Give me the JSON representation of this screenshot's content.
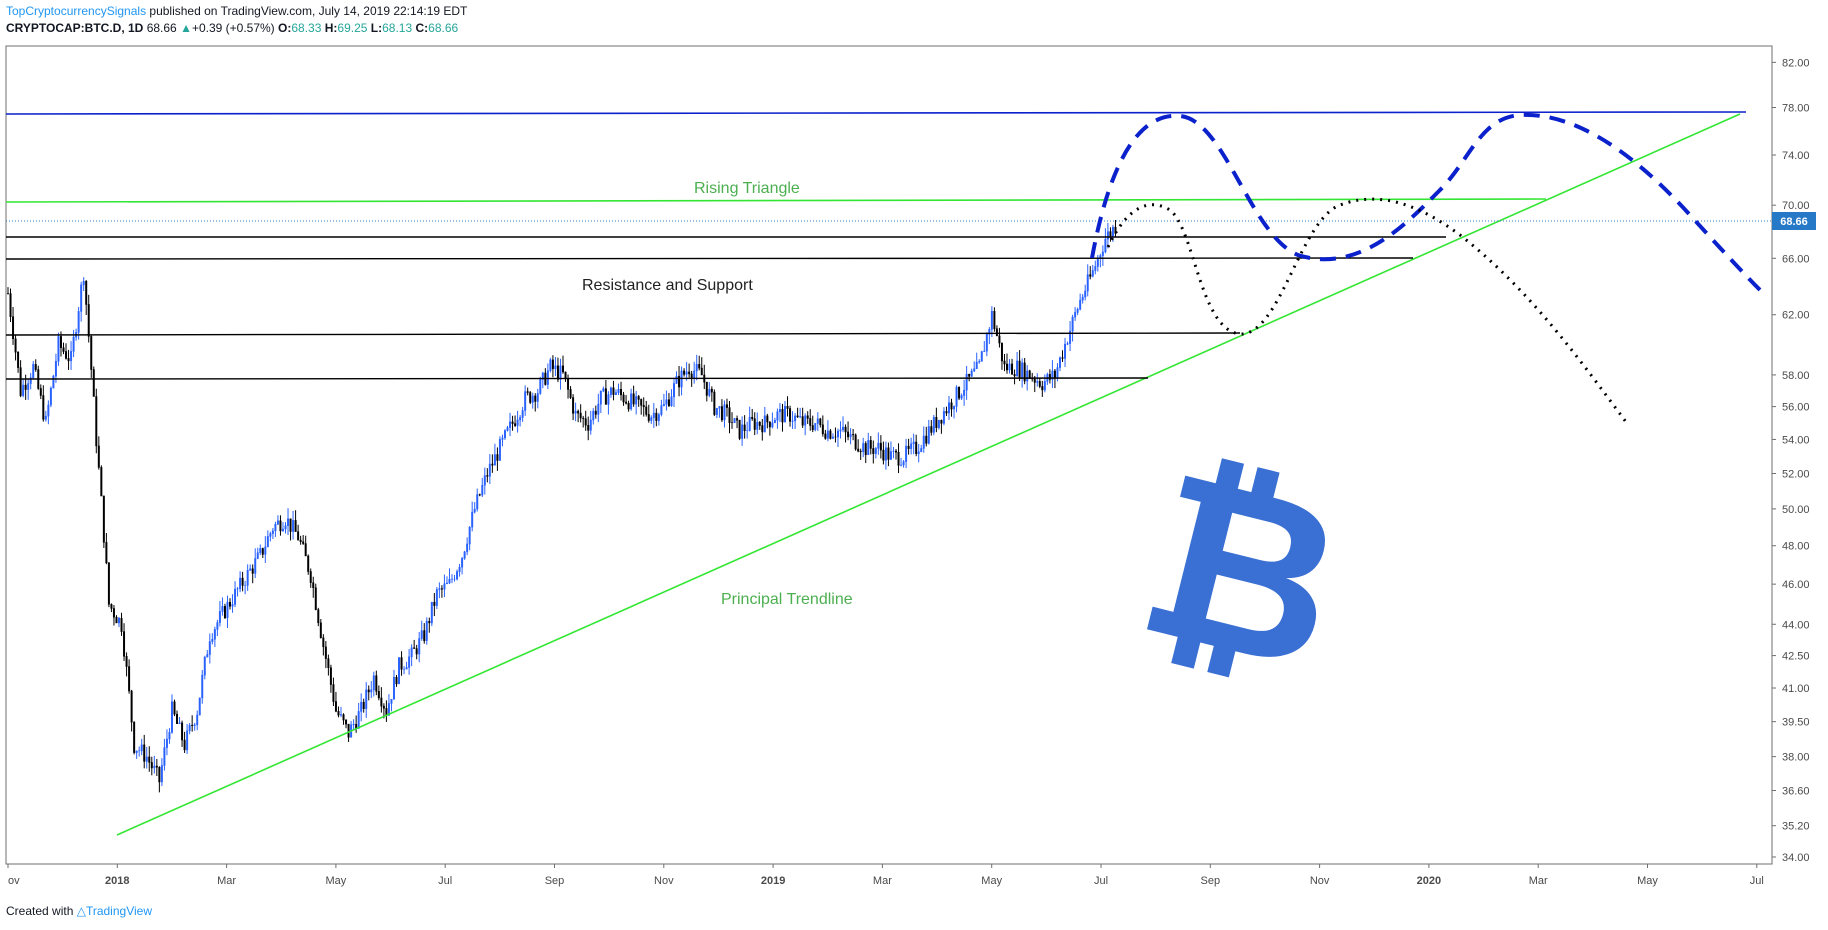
{
  "header": {
    "author": "TopCryptocurrencySignals",
    "published": " published on TradingView.com, July 14, 2019 22:14:19 EDT",
    "symbol": "CRYPTOCAP:BTC.D, 1D",
    "last": "68.66",
    "change_icon": "triangle-up-icon",
    "change": "+0.39 (+0.57%)",
    "o_label": "O:",
    "o": "68.33",
    "h_label": "H:",
    "h": "69.25",
    "l_label": "L:",
    "l": "68.13",
    "c_label": "C:",
    "c": "68.66"
  },
  "footer": {
    "created_with": "Created with",
    "brand": "TradingView",
    "brand_icon": "tradingview-logo-icon"
  },
  "colors": {
    "up_candle": "#2962ff",
    "down_candle": "#000000",
    "green_line": "#33e633",
    "blue_line": "#0a21cc",
    "price_badge": "#2679c7",
    "bitcoin": "#3a6fd4"
  },
  "chart_data": {
    "type": "line",
    "title": "CRYPTOCAP:BTC.D, 1D",
    "series": [
      {
        "x": [
          "2017-11-05",
          "2017-11-12",
          "2017-11-19",
          "2017-11-26",
          "2017-12-03",
          "2017-12-10",
          "2017-12-17",
          "2017-12-24",
          "2017-12-31",
          "2018-01-07",
          "2018-01-14",
          "2018-01-21",
          "2018-01-28",
          "2018-02-04",
          "2018-02-11",
          "2018-02-18",
          "2018-02-25",
          "2018-03-04",
          "2018-03-11",
          "2018-03-18",
          "2018-03-25",
          "2018-04-01",
          "2018-04-08",
          "2018-04-15",
          "2018-04-22",
          "2018-04-29",
          "2018-05-06",
          "2018-05-13",
          "2018-05-20",
          "2018-05-27",
          "2018-06-03",
          "2018-06-10",
          "2018-06-17",
          "2018-06-24",
          "2018-07-01",
          "2018-07-08",
          "2018-07-15",
          "2018-07-22",
          "2018-07-29",
          "2018-08-05",
          "2018-08-12",
          "2018-08-19",
          "2018-08-26",
          "2018-09-02",
          "2018-09-09",
          "2018-09-16",
          "2018-09-23",
          "2018-09-30",
          "2018-10-07",
          "2018-10-14",
          "2018-10-21",
          "2018-10-28",
          "2018-11-04",
          "2018-11-11",
          "2018-11-18",
          "2018-11-25",
          "2018-12-02",
          "2018-12-09",
          "2018-12-16",
          "2018-12-23",
          "2018-12-30",
          "2019-01-06",
          "2019-01-13",
          "2019-01-20",
          "2019-01-27",
          "2019-02-03",
          "2019-02-10",
          "2019-02-17",
          "2019-02-24",
          "2019-03-03",
          "2019-03-10",
          "2019-03-17",
          "2019-03-24",
          "2019-03-31",
          "2019-04-07",
          "2019-04-14",
          "2019-04-21",
          "2019-04-28",
          "2019-05-05",
          "2019-05-12",
          "2019-05-19",
          "2019-05-26",
          "2019-06-02",
          "2019-06-09",
          "2019-06-16",
          "2019-06-23",
          "2019-06-30",
          "2019-07-07",
          "2019-07-14"
        ],
        "values": [
          63.5,
          57.0,
          58.5,
          55.0,
          60.0,
          59.0,
          65.0,
          54.0,
          45.0,
          44.0,
          38.5,
          38.0,
          37.0,
          40.0,
          38.5,
          40.0,
          43.5,
          44.5,
          45.5,
          46.5,
          47.5,
          49.0,
          49.5,
          48.5,
          46.5,
          43.0,
          40.0,
          39.0,
          40.0,
          41.5,
          40.0,
          42.0,
          42.5,
          43.5,
          45.5,
          46.0,
          47.5,
          50.0,
          52.0,
          53.5,
          55.0,
          56.5,
          57.0,
          58.5,
          58.0,
          55.5,
          55.0,
          56.5,
          57.0,
          56.5,
          56.0,
          55.5,
          56.0,
          57.5,
          58.5,
          58.0,
          56.0,
          55.5,
          54.5,
          55.0,
          55.0,
          55.5,
          55.5,
          55.0,
          55.0,
          54.5,
          54.5,
          54.0,
          53.5,
          53.5,
          53.0,
          53.0,
          53.5,
          54.5,
          55.5,
          56.5,
          57.5,
          58.5,
          62.0,
          58.5,
          58.5,
          58.0,
          57.5,
          58.0,
          60.5,
          63.0,
          65.0,
          67.5,
          68.66
        ]
      }
    ],
    "yticks": [
      "82.00",
      "78.00",
      "74.00",
      "70.00",
      "66.00",
      "62.00",
      "58.00",
      "56.00",
      "54.00",
      "52.00",
      "50.00",
      "48.00",
      "46.00",
      "44.00",
      "42.50",
      "41.00",
      "39.50",
      "38.00",
      "36.60",
      "35.20",
      "34.00"
    ],
    "xticks": [
      "ov",
      "2018",
      "Mar",
      "May",
      "Jul",
      "Sep",
      "Nov",
      "2019",
      "Mar",
      "May",
      "Jul",
      "Sep",
      "Nov",
      "2020",
      "Mar",
      "May",
      "Jul"
    ],
    "xticks_bold": [
      "2018",
      "2019",
      "2020"
    ],
    "ylim": [
      34.0,
      83.5
    ],
    "log_scale": true,
    "grid": false,
    "last_price": "68.66",
    "annotations": [
      "Rising Triangle",
      "Resistance and Support",
      "Principal Trendline"
    ],
    "logo": "bitcoin-logo-icon"
  }
}
